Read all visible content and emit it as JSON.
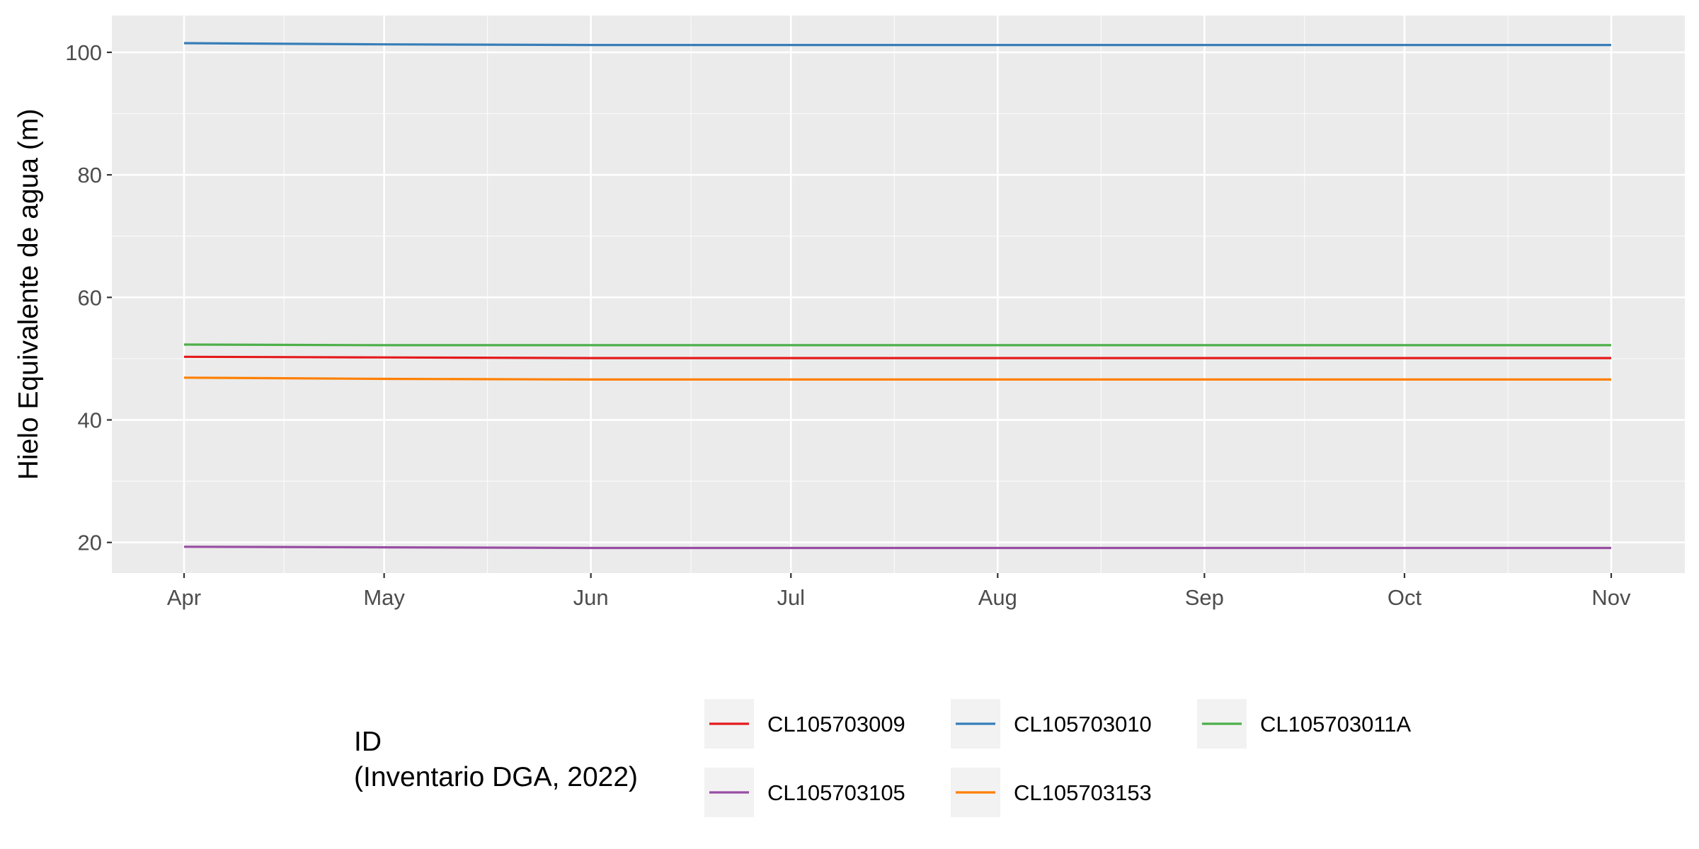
{
  "chart_data": {
    "type": "line",
    "title": "",
    "xlabel": "",
    "ylabel": "Hielo Equivalente de agua (m)",
    "x": [
      "2022-04-01",
      "2022-05-01",
      "2022-06-01",
      "2022-07-01",
      "2022-08-01",
      "2022-09-01",
      "2022-10-01",
      "2022-11-01"
    ],
    "x_tick_labels": [
      "Apr",
      "May",
      "Jun",
      "Jul",
      "Aug",
      "Sep",
      "Oct",
      "Nov"
    ],
    "y_ticks": [
      20,
      40,
      60,
      80,
      100
    ],
    "ylim": [
      15,
      106
    ],
    "grid": true,
    "legend_position": "bottom",
    "legend_title": [
      "ID",
      "(Inventario DGA, 2022)"
    ],
    "series": [
      {
        "name": "CL105703009",
        "color": "#e41a1c",
        "values": [
          50.3,
          50.2,
          50.1,
          50.1,
          50.1,
          50.1,
          50.1,
          50.1
        ]
      },
      {
        "name": "CL105703010",
        "color": "#377eb8",
        "values": [
          101.5,
          101.3,
          101.2,
          101.2,
          101.2,
          101.2,
          101.2,
          101.2
        ]
      },
      {
        "name": "CL105703011A",
        "color": "#4daf4a",
        "values": [
          52.3,
          52.2,
          52.2,
          52.2,
          52.2,
          52.2,
          52.2,
          52.2
        ]
      },
      {
        "name": "CL105703105",
        "color": "#984ea3",
        "values": [
          19.3,
          19.2,
          19.1,
          19.1,
          19.1,
          19.1,
          19.1,
          19.1
        ]
      },
      {
        "name": "CL105703153",
        "color": "#ff7f00",
        "values": [
          46.9,
          46.7,
          46.6,
          46.6,
          46.6,
          46.6,
          46.6,
          46.6
        ]
      }
    ]
  },
  "colors": {
    "panel_background": "#ebebeb",
    "grid_line": "#ffffff",
    "legend_key_background": "#f2f2f2"
  }
}
